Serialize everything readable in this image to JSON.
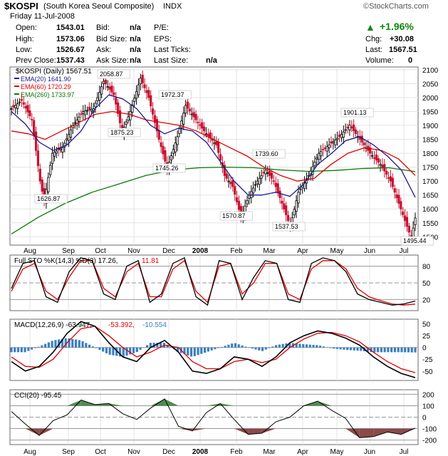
{
  "header": {
    "symbol": "$KOSPI",
    "name": "(South Korea Seoul Composite)",
    "exchange": "INDX",
    "brand": "StockCharts.com",
    "date": "Friday  11-Jul-2008",
    "change_pct": "+1.96%",
    "stats": [
      {
        "label": "Open:",
        "value": "1543.01"
      },
      {
        "label": "High:",
        "value": "1573.06"
      },
      {
        "label": "Low:",
        "value": "1526.67"
      },
      {
        "label": "Prev Close:",
        "value": "1537.43"
      }
    ],
    "stats2": [
      {
        "label": "Bid:",
        "value": "n/a"
      },
      {
        "label": "Bid Size:",
        "value": "n/a"
      },
      {
        "label": "Ask:",
        "value": "n/a"
      },
      {
        "label": "Ask Size:",
        "value": "n/a"
      }
    ],
    "stats3": [
      {
        "label": "P/E:",
        "value": ""
      },
      {
        "label": "EPS:",
        "value": ""
      },
      {
        "label": "Last Ticks:",
        "value": ""
      },
      {
        "label": "Last Size:",
        "value": "n/a"
      }
    ],
    "stats4": [
      {
        "label": "Chg:",
        "value": "+30.08"
      },
      {
        "label": "Last:",
        "value": "1567.51"
      },
      {
        "label": "Volume:",
        "value": "0"
      }
    ]
  },
  "chart_data": [
    {
      "type": "candlestick",
      "panel": "price",
      "title": "$KOSPI (Daily) 1567.51",
      "ylim": [
        1470,
        2110
      ],
      "yticks": [
        1500,
        1550,
        1600,
        1650,
        1700,
        1750,
        1800,
        1850,
        1900,
        1950,
        2000,
        2050,
        2100
      ],
      "x_months": [
        "Aug",
        "Sep",
        "Oct",
        "Nov",
        "Dec",
        "2008",
        "Feb",
        "Mar",
        "Apr",
        "May",
        "Jun",
        "Jul"
      ],
      "legend": [
        {
          "label": "$KOSPI (Daily) 1567.51",
          "color": "#000000"
        },
        {
          "label": "EMA(20) 1641.90",
          "color": "#1a1a8c"
        },
        {
          "label": "EMA(60) 1720.29",
          "color": "#e00000"
        },
        {
          "label": "EMA(260) 1733.97",
          "color": "#0a7a0a"
        }
      ],
      "price_series": [
        {
          "t": 0,
          "v": 1960
        },
        {
          "t": 5,
          "v": 1990
        },
        {
          "t": 10,
          "v": 1920
        },
        {
          "t": 14,
          "v": 1700
        },
        {
          "t": 16,
          "v": 1626.87
        },
        {
          "t": 20,
          "v": 1800
        },
        {
          "t": 25,
          "v": 1820
        },
        {
          "t": 30,
          "v": 1900
        },
        {
          "t": 35,
          "v": 1950
        },
        {
          "t": 40,
          "v": 1960
        },
        {
          "t": 45,
          "v": 2058.87
        },
        {
          "t": 50,
          "v": 2010
        },
        {
          "t": 54,
          "v": 1875.23
        },
        {
          "t": 58,
          "v": 1950
        },
        {
          "t": 63,
          "v": 2070
        },
        {
          "t": 67,
          "v": 2000
        },
        {
          "t": 72,
          "v": 1850
        },
        {
          "t": 76,
          "v": 1745.26
        },
        {
          "t": 81,
          "v": 1860
        },
        {
          "t": 85,
          "v": 1972.37
        },
        {
          "t": 90,
          "v": 1920
        },
        {
          "t": 95,
          "v": 1870
        },
        {
          "t": 100,
          "v": 1830
        },
        {
          "t": 104,
          "v": 1720
        },
        {
          "t": 108,
          "v": 1680
        },
        {
          "t": 112,
          "v": 1570.87
        },
        {
          "t": 116,
          "v": 1650
        },
        {
          "t": 120,
          "v": 1700
        },
        {
          "t": 124,
          "v": 1739.6
        },
        {
          "t": 128,
          "v": 1700
        },
        {
          "t": 132,
          "v": 1620
        },
        {
          "t": 136,
          "v": 1537.53
        },
        {
          "t": 140,
          "v": 1660
        },
        {
          "t": 145,
          "v": 1720
        },
        {
          "t": 150,
          "v": 1800
        },
        {
          "t": 155,
          "v": 1830
        },
        {
          "t": 160,
          "v": 1860
        },
        {
          "t": 165,
          "v": 1901.13
        },
        {
          "t": 170,
          "v": 1850
        },
        {
          "t": 175,
          "v": 1800
        },
        {
          "t": 180,
          "v": 1760
        },
        {
          "t": 185,
          "v": 1700
        },
        {
          "t": 190,
          "v": 1600
        },
        {
          "t": 195,
          "v": 1495.44
        },
        {
          "t": 197,
          "v": 1567.51
        }
      ],
      "ema20": [
        1950,
        1905,
        1840,
        1810,
        1830,
        1880,
        1960,
        2010,
        1995,
        1960,
        1900,
        1870,
        1890,
        1880,
        1840,
        1770,
        1700,
        1650,
        1650,
        1660,
        1645,
        1690,
        1760,
        1800,
        1845,
        1860,
        1830,
        1790,
        1740,
        1641.9
      ],
      "ema60": [
        1880,
        1870,
        1850,
        1880,
        1910,
        1940,
        1950,
        1940,
        1920,
        1910,
        1900,
        1880,
        1850,
        1820,
        1790,
        1750,
        1720,
        1700,
        1710,
        1760,
        1800,
        1820,
        1810,
        1780,
        1720.29
      ],
      "ema260": [
        1510,
        1570,
        1620,
        1660,
        1690,
        1720,
        1740,
        1748,
        1750,
        1748,
        1740,
        1735,
        1738,
        1745,
        1748,
        1733.97
      ],
      "annotations": [
        "2058.87",
        "1972.37",
        "1875.23",
        "1745.26",
        "1626.87",
        "1739.60",
        "1570.87",
        "1537.53",
        "1901.13",
        "1495.44"
      ]
    },
    {
      "type": "line",
      "panel": "stochastic",
      "title": "Full STO %K(14,3) %D(3) 17.26, 11.81",
      "title_prefix": "Full STO %K(14,3) %D(3) 17.26,",
      "title_suffix": "11.81",
      "ylim": [
        0,
        100
      ],
      "yticks": [
        20,
        50,
        80
      ],
      "series": [
        {
          "name": "%K(14,3)",
          "values": [
            40,
            85,
            90,
            25,
            15,
            70,
            95,
            90,
            30,
            20,
            80,
            90,
            15,
            30,
            85,
            95,
            25,
            10,
            90,
            85,
            20,
            60,
            90,
            85,
            20,
            15,
            85,
            95,
            90,
            70,
            30,
            20,
            15,
            10,
            12,
            17.26
          ]
        },
        {
          "name": "%D(3)",
          "values": [
            35,
            75,
            85,
            35,
            20,
            60,
            90,
            90,
            40,
            25,
            70,
            85,
            25,
            25,
            75,
            90,
            35,
            15,
            80,
            85,
            30,
            50,
            85,
            85,
            30,
            20,
            75,
            90,
            90,
            75,
            40,
            25,
            18,
            12,
            10,
            11.81
          ]
        }
      ]
    },
    {
      "type": "line",
      "panel": "macd",
      "title": "MACD(12,26,9) -63.947, -53.392, -10.554",
      "title_parts": [
        "MACD(12,26,9) -63.947,",
        "-53.392,",
        "-10.554"
      ],
      "ylim": [
        -70,
        60
      ],
      "yticks": [
        50,
        25,
        0,
        -25,
        -50
      ],
      "series": [
        {
          "name": "MACD",
          "values": [
            -30,
            -50,
            -40,
            -10,
            30,
            55,
            45,
            10,
            -20,
            -30,
            0,
            15,
            -10,
            -50,
            -55,
            -45,
            -20,
            -25,
            -40,
            -20,
            10,
            25,
            35,
            30,
            20,
            5,
            -20,
            -40,
            -55,
            -63.947
          ]
        },
        {
          "name": "Signal",
          "values": [
            -20,
            -40,
            -42,
            -25,
            10,
            40,
            45,
            25,
            0,
            -20,
            -10,
            5,
            0,
            -30,
            -45,
            -45,
            -30,
            -25,
            -32,
            -25,
            0,
            18,
            30,
            32,
            25,
            12,
            -10,
            -30,
            -45,
            -53.392
          ]
        },
        {
          "name": "Histogram",
          "values": [
            -10,
            -10,
            2,
            15,
            20,
            15,
            0,
            -15,
            -20,
            -10,
            10,
            10,
            -10,
            -20,
            -10,
            0,
            10,
            0,
            -8,
            5,
            10,
            7,
            5,
            -2,
            -5,
            -7,
            -10,
            -10,
            -10,
            -10.554
          ]
        }
      ]
    },
    {
      "type": "line",
      "panel": "cci",
      "title": "CCI(20) -95.45",
      "ylim": [
        -240,
        240
      ],
      "yticks": [
        200,
        100,
        0,
        -100,
        -200
      ],
      "series": [
        {
          "name": "CCI(20)",
          "values": [
            50,
            -60,
            -160,
            -30,
            20,
            150,
            110,
            120,
            30,
            -20,
            80,
            160,
            -80,
            -120,
            40,
            120,
            -20,
            -150,
            -140,
            -40,
            0,
            100,
            140,
            60,
            -10,
            -180,
            -170,
            -130,
            -150,
            -95.45
          ]
        }
      ]
    }
  ]
}
